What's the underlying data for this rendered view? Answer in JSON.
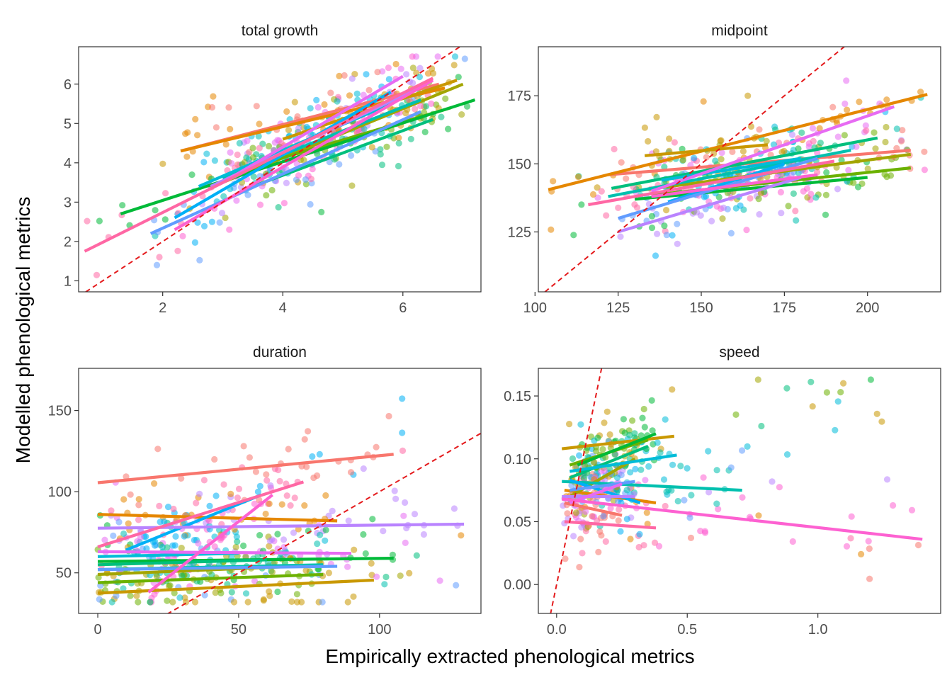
{
  "figure": {
    "xlabel": "Empirically extracted phenological metrics",
    "ylabel": "Modelled phenological metrics",
    "palette": [
      "#F8766D",
      "#E58700",
      "#C99800",
      "#A3A500",
      "#6BB100",
      "#00BA38",
      "#00BF7D",
      "#00C0AF",
      "#00BCD8",
      "#00B0F6",
      "#619CFF",
      "#B983FF",
      "#E76BF3",
      "#FD61D1",
      "#FF67A4"
    ],
    "reference_line_color": "#E41A1C",
    "panel_border_color": "#333333"
  },
  "chart_data": [
    {
      "type": "scatter",
      "title": "total growth",
      "xlim": [
        0.6,
        7.3
      ],
      "ylim": [
        0.72,
        6.95
      ],
      "xticks": [
        2,
        4,
        6
      ],
      "yticks": [
        1,
        2,
        3,
        4,
        5,
        6
      ],
      "xtick_labels": [
        "2",
        "4",
        "6"
      ],
      "ytick_labels": [
        "1",
        "2",
        "3",
        "4",
        "5",
        "6"
      ],
      "grid": false,
      "reference_line": "y = x",
      "cloud": {
        "n_points": 400,
        "x_range": [
          0.7,
          7.2
        ],
        "y_range": [
          0.95,
          6.7
        ]
      },
      "trend_lines": [
        {
          "series": 0,
          "x": [
            2.3,
            6.6
          ],
          "y": [
            4.3,
            6.0
          ]
        },
        {
          "series": 1,
          "x": [
            2.3,
            6.7
          ],
          "y": [
            4.3,
            5.9
          ]
        },
        {
          "series": 2,
          "x": [
            4.0,
            6.9
          ],
          "y": [
            4.6,
            6.1
          ]
        },
        {
          "series": 3,
          "x": [
            3.0,
            7.0
          ],
          "y": [
            3.5,
            6.0
          ]
        },
        {
          "series": 4,
          "x": [
            3.5,
            6.8
          ],
          "y": [
            3.9,
            5.4
          ]
        },
        {
          "series": 5,
          "x": [
            1.3,
            7.2
          ],
          "y": [
            2.7,
            5.6
          ]
        },
        {
          "series": 6,
          "x": [
            3.5,
            6.5
          ],
          "y": [
            3.4,
            5.1
          ]
        },
        {
          "series": 7,
          "x": [
            3.0,
            6.3
          ],
          "y": [
            3.6,
            5.6
          ]
        },
        {
          "series": 8,
          "x": [
            2.6,
            5.8
          ],
          "y": [
            3.4,
            5.5
          ]
        },
        {
          "series": 9,
          "x": [
            2.2,
            5.8
          ],
          "y": [
            2.6,
            5.8
          ]
        },
        {
          "series": 10,
          "x": [
            1.8,
            6.3
          ],
          "y": [
            2.2,
            5.3
          ]
        },
        {
          "series": 11,
          "x": [
            2.8,
            6.4
          ],
          "y": [
            3.4,
            6.0
          ]
        },
        {
          "series": 12,
          "x": [
            3.0,
            6.0
          ],
          "y": [
            3.5,
            6.2
          ]
        },
        {
          "series": 13,
          "x": [
            2.2,
            6.5
          ],
          "y": [
            2.3,
            6.1
          ]
        },
        {
          "series": 14,
          "x": [
            0.7,
            6.5
          ],
          "y": [
            1.75,
            6.15
          ]
        }
      ]
    },
    {
      "type": "scatter",
      "title": "midpoint",
      "xlim": [
        101,
        222
      ],
      "ylim": [
        103,
        193
      ],
      "xticks": [
        100,
        125,
        150,
        175,
        200
      ],
      "yticks": [
        125,
        150,
        175
      ],
      "xtick_labels": [
        "100",
        "125",
        "150",
        "175",
        "200"
      ],
      "ytick_labels": [
        "125",
        "150",
        "175"
      ],
      "grid": false,
      "reference_line": "y = x",
      "cloud": {
        "n_points": 400,
        "x_range": [
          104,
          218
        ],
        "y_range": [
          107,
          188
        ]
      },
      "trend_lines": [
        {
          "series": 0,
          "x": [
            122,
            213
          ],
          "y": [
            146,
            155
          ]
        },
        {
          "series": 1,
          "x": [
            104,
            218
          ],
          "y": [
            140.5,
            175.5
          ]
        },
        {
          "series": 2,
          "x": [
            133,
            170
          ],
          "y": [
            153,
            157
          ]
        },
        {
          "series": 3,
          "x": [
            130,
            213
          ],
          "y": [
            140,
            153.5
          ]
        },
        {
          "series": 4,
          "x": [
            135,
            213
          ],
          "y": [
            138.5,
            148.5
          ]
        },
        {
          "series": 5,
          "x": [
            130,
            200
          ],
          "y": [
            137,
            145
          ]
        },
        {
          "series": 6,
          "x": [
            123,
            203
          ],
          "y": [
            141,
            159.5
          ]
        },
        {
          "series": 7,
          "x": [
            122,
            195
          ],
          "y": [
            138,
            155
          ]
        },
        {
          "series": 8,
          "x": [
            138,
            180
          ],
          "y": [
            144,
            152
          ]
        },
        {
          "series": 9,
          "x": [
            140,
            175
          ],
          "y": [
            136,
            150
          ]
        },
        {
          "series": 10,
          "x": [
            125,
            185
          ],
          "y": [
            130,
            152
          ]
        },
        {
          "series": 11,
          "x": [
            125,
            180
          ],
          "y": [
            125,
            145
          ]
        },
        {
          "series": 12,
          "x": [
            135,
            208
          ],
          "y": [
            140,
            171
          ]
        },
        {
          "series": 13,
          "x": [
            135,
            185
          ],
          "y": [
            138,
            146
          ]
        },
        {
          "series": 14,
          "x": [
            116,
            190
          ],
          "y": [
            135,
            151
          ]
        }
      ]
    },
    {
      "type": "scatter",
      "title": "duration",
      "xlim": [
        -6.8,
        136
      ],
      "ylim": [
        25,
        176
      ],
      "xticks": [
        0,
        50,
        100
      ],
      "yticks": [
        50,
        100,
        150
      ],
      "xtick_labels": [
        "0",
        "50",
        "100"
      ],
      "ytick_labels": [
        "50",
        "100",
        "150"
      ],
      "grid": false,
      "reference_line": "y = x",
      "cloud": {
        "n_points": 450,
        "x_range": [
          0,
          130
        ],
        "y_range": [
          32,
          169
        ]
      },
      "trend_lines": [
        {
          "series": 0,
          "x": [
            0,
            105
          ],
          "y": [
            105.5,
            123
          ]
        },
        {
          "series": 1,
          "x": [
            0,
            85
          ],
          "y": [
            86,
            82
          ]
        },
        {
          "series": 2,
          "x": [
            0,
            98
          ],
          "y": [
            37.5,
            45.5
          ]
        },
        {
          "series": 3,
          "x": [
            0,
            70
          ],
          "y": [
            49,
            54
          ]
        },
        {
          "series": 4,
          "x": [
            0,
            80
          ],
          "y": [
            44,
            49
          ]
        },
        {
          "series": 5,
          "x": [
            0,
            105
          ],
          "y": [
            57,
            59
          ]
        },
        {
          "series": 6,
          "x": [
            0,
            60
          ],
          "y": [
            55,
            58
          ]
        },
        {
          "series": 7,
          "x": [
            0,
            80
          ],
          "y": [
            52,
            55
          ]
        },
        {
          "series": 8,
          "x": [
            0,
            50
          ],
          "y": [
            60,
            62
          ]
        },
        {
          "series": 9,
          "x": [
            10,
            58
          ],
          "y": [
            64,
            98
          ]
        },
        {
          "series": 10,
          "x": [
            0,
            85
          ],
          "y": [
            52,
            54
          ]
        },
        {
          "series": 11,
          "x": [
            0,
            130
          ],
          "y": [
            77.5,
            80
          ]
        },
        {
          "series": 12,
          "x": [
            0,
            90
          ],
          "y": [
            63,
            62
          ]
        },
        {
          "series": 13,
          "x": [
            18,
            62
          ],
          "y": [
            38,
            98
          ]
        },
        {
          "series": 14,
          "x": [
            0,
            73
          ],
          "y": [
            66,
            106
          ]
        }
      ]
    },
    {
      "type": "scatter",
      "title": "speed",
      "xlim": [
        -0.07,
        1.47
      ],
      "ylim": [
        -0.023,
        0.172
      ],
      "xticks": [
        0.0,
        0.5,
        1.0
      ],
      "yticks": [
        0.0,
        0.05,
        0.1,
        0.15
      ],
      "xtick_labels": [
        "0.0",
        "0.5",
        "1.0"
      ],
      "ytick_labels": [
        "0.00",
        "0.05",
        "0.10",
        "0.15"
      ],
      "grid": false,
      "reference_line": "y = x",
      "cloud": {
        "n_points": 350,
        "x_range": [
          0.0,
          1.4
        ],
        "y_range": [
          -0.014,
          0.163
        ]
      },
      "trend_lines": [
        {
          "series": 0,
          "x": [
            0.03,
            0.25
          ],
          "y": [
            0.065,
            0.055
          ]
        },
        {
          "series": 1,
          "x": [
            0.03,
            0.38
          ],
          "y": [
            0.075,
            0.065
          ]
        },
        {
          "series": 2,
          "x": [
            0.02,
            0.45
          ],
          "y": [
            0.108,
            0.118
          ]
        },
        {
          "series": 3,
          "x": [
            0.05,
            0.3
          ],
          "y": [
            0.07,
            0.1
          ]
        },
        {
          "series": 4,
          "x": [
            0.05,
            0.35
          ],
          "y": [
            0.095,
            0.115
          ]
        },
        {
          "series": 5,
          "x": [
            0.08,
            0.38
          ],
          "y": [
            0.095,
            0.12
          ]
        },
        {
          "series": 6,
          "x": [
            0.05,
            0.35
          ],
          "y": [
            0.085,
            0.11
          ]
        },
        {
          "series": 7,
          "x": [
            0.02,
            0.71
          ],
          "y": [
            0.082,
            0.075
          ]
        },
        {
          "series": 8,
          "x": [
            0.05,
            0.46
          ],
          "y": [
            0.09,
            0.103
          ]
        },
        {
          "series": 9,
          "x": [
            0.05,
            0.32
          ],
          "y": [
            0.083,
            0.065
          ]
        },
        {
          "series": 10,
          "x": [
            0.05,
            0.3
          ],
          "y": [
            0.075,
            0.082
          ]
        },
        {
          "series": 11,
          "x": [
            0.02,
            0.3
          ],
          "y": [
            0.07,
            0.07
          ]
        },
        {
          "series": 12,
          "x": [
            0.05,
            0.25
          ],
          "y": [
            0.065,
            0.08
          ]
        },
        {
          "series": 13,
          "x": [
            0.02,
            1.4
          ],
          "y": [
            0.068,
            0.036
          ]
        },
        {
          "series": 14,
          "x": [
            0.03,
            0.38
          ],
          "y": [
            0.05,
            0.045
          ]
        }
      ]
    }
  ]
}
